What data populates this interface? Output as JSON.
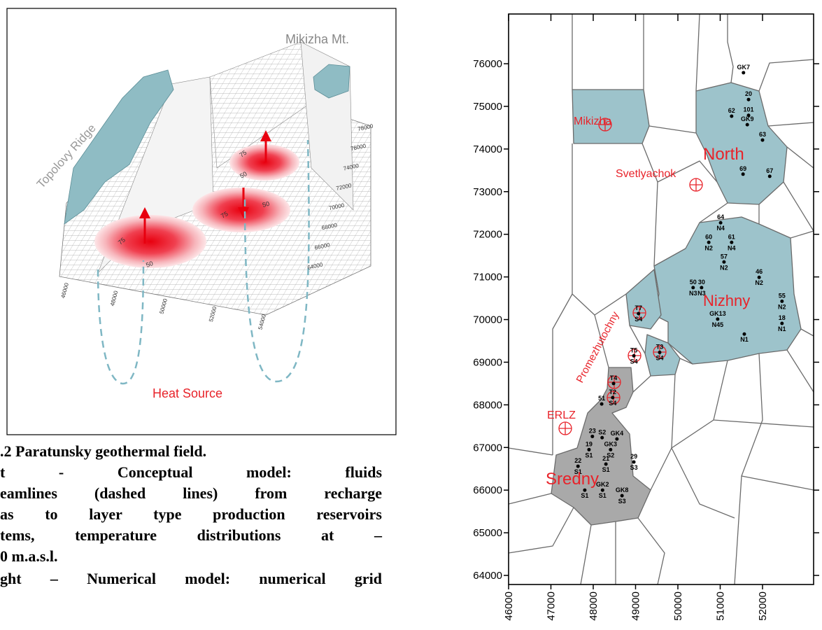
{
  "conceptual_model": {
    "ridge_label": "Topolovy Ridge",
    "mountain_label": "Mikizha Mt.",
    "heat_source_label": "Heat Source",
    "contour_labels": [
      "75",
      "50",
      "75",
      "50",
      "75",
      "50"
    ],
    "x_ticks": [
      46000,
      48000,
      50000,
      52000,
      54000
    ],
    "y_ticks": [
      64000,
      66000,
      68000,
      70000,
      72000,
      74000,
      76000,
      78000
    ]
  },
  "caption": {
    "lines": [
      ".2 Paratunsky geothermal field.",
      "t - Conceptual model: fluids",
      "eamlines (dashed lines) from recharge",
      "as to layer type production reservoirs",
      "tems, temperature distributions at –",
      "0 m.a.s.l.",
      "ght – Numerical model: numerical grid"
    ]
  },
  "chart_data": {
    "type": "scatter",
    "xlim": [
      46000,
      53207
    ],
    "ylim": [
      63787,
      77166
    ],
    "xticks": [
      46000,
      47000,
      48000,
      49000,
      50000,
      51000,
      52000
    ],
    "yticks": [
      64000,
      65000,
      66000,
      67000,
      68000,
      69000,
      70000,
      71000,
      72000,
      73000,
      74000,
      75000,
      76000
    ],
    "color": "#000000",
    "region_labels": [
      "Mikizha",
      "North",
      "Svetlyachok",
      "Nizhny",
      "Promezhutochny",
      "ERLZ",
      "Sredny"
    ],
    "wells": [
      {
        "label": "GK7",
        "x": 51550,
        "y": 75790
      },
      {
        "label": "20",
        "x": 51670,
        "y": 75160
      },
      {
        "label": "62",
        "x": 51270,
        "y": 74770
      },
      {
        "label": "101",
        "x": 51670,
        "y": 74790
      },
      {
        "label": "GK9",
        "x": 51640,
        "y": 74570
      },
      {
        "label": "63",
        "x": 52000,
        "y": 74210
      },
      {
        "label": "69",
        "x": 51540,
        "y": 73410
      },
      {
        "label": "67",
        "x": 52170,
        "y": 73360
      },
      {
        "label": "64",
        "sub": "N4",
        "x": 51010,
        "y": 72270
      },
      {
        "label": "60",
        "sub": "N2",
        "x": 50730,
        "y": 71810
      },
      {
        "label": "61",
        "sub": "N4",
        "x": 51270,
        "y": 71810
      },
      {
        "label": "57",
        "sub": "N2",
        "x": 51090,
        "y": 71350
      },
      {
        "label": "46",
        "sub": "N2",
        "x": 51920,
        "y": 70990
      },
      {
        "label": "50",
        "sub": "N3",
        "x": 50360,
        "y": 70750
      },
      {
        "label": "30",
        "sub": "N3",
        "x": 50560,
        "y": 70750
      },
      {
        "label": "55",
        "sub": "N2",
        "x": 52460,
        "y": 70430
      },
      {
        "label": "18",
        "sub": "N1",
        "x": 52460,
        "y": 69910
      },
      {
        "label": "GK13",
        "sub": "N45",
        "x": 50940,
        "y": 70010
      },
      {
        "sub": "N1",
        "x": 51570,
        "y": 69660
      },
      {
        "label": "T7",
        "sub": "S4",
        "x": 49070,
        "y": 70140
      },
      {
        "label": "T5",
        "sub": "S4",
        "x": 48960,
        "y": 69150
      },
      {
        "label": "T3",
        "sub": "S4",
        "x": 49570,
        "y": 69230
      },
      {
        "label": "T4",
        "x": 48480,
        "y": 68500
      },
      {
        "label": "T2",
        "sub": "S4",
        "x": 48460,
        "y": 68170
      },
      {
        "label": "51",
        "x": 48200,
        "y": 68020
      },
      {
        "label": "23",
        "x": 47980,
        "y": 67260
      },
      {
        "label": "S2",
        "x": 48210,
        "y": 67230
      },
      {
        "label": "GK4",
        "x": 48560,
        "y": 67200
      },
      {
        "label": "19",
        "sub": "S1",
        "x": 47900,
        "y": 66950
      },
      {
        "label": "GK3",
        "sub": "S2",
        "x": 48410,
        "y": 66950
      },
      {
        "label": "22",
        "sub": "S1",
        "x": 47640,
        "y": 66560
      },
      {
        "label": "21",
        "sub": "S1",
        "x": 48300,
        "y": 66610
      },
      {
        "label": "29",
        "sub": "S3",
        "x": 48960,
        "y": 66660
      },
      {
        "sub": "S1",
        "x": 47800,
        "y": 66000
      },
      {
        "label": "GK2",
        "sub": "S1",
        "x": 48220,
        "y": 66000
      },
      {
        "label": "GK8",
        "sub": "S3",
        "x": 48680,
        "y": 65870
      }
    ]
  }
}
